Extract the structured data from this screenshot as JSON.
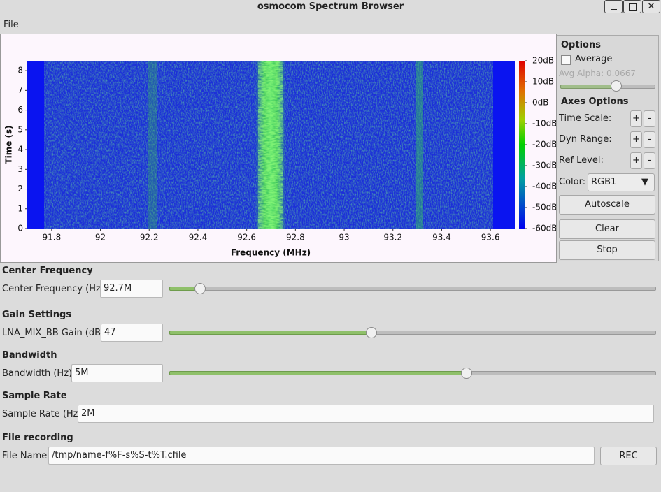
{
  "window": {
    "title": "osmocom Spectrum Browser"
  },
  "menu": [
    "File"
  ],
  "waterfall": {
    "type": "waterfall",
    "xlabel": "Frequency (MHz)",
    "ylabel": "Time (s)",
    "xlim": [
      91.7,
      93.7
    ],
    "ylim": [
      0,
      8.5
    ],
    "xticks": [
      91.8,
      92,
      92.2,
      92.4,
      92.6,
      92.8,
      93,
      93.2,
      93.4,
      93.6
    ],
    "yticks": [
      0,
      1,
      2,
      3,
      4,
      5,
      6,
      7,
      8
    ],
    "colorbar_lim": [
      -60,
      20
    ],
    "colorbar_ticks": [
      {
        "value": 20,
        "label": "20dB"
      },
      {
        "value": 10,
        "label": "10dB"
      },
      {
        "value": 0,
        "label": "0dB"
      },
      {
        "value": -10,
        "label": "-10dB"
      },
      {
        "value": -20,
        "label": "-20dB"
      },
      {
        "value": -30,
        "label": "-30dB"
      },
      {
        "value": -40,
        "label": "-40dB"
      },
      {
        "value": -50,
        "label": "-50dB"
      },
      {
        "value": -60,
        "label": "-60dB"
      }
    ]
  },
  "options": {
    "title": "Options",
    "average": "Average",
    "avg_alpha": "Avg Alpha: 0.0667",
    "axes_title": "Axes Options",
    "axes_rows": [
      {
        "label": "Time Scale:",
        "plus": "+",
        "minus": "-"
      },
      {
        "label": "Dyn Range:",
        "plus": "+",
        "minus": "-"
      },
      {
        "label": "Ref Level:",
        "plus": "+",
        "minus": "-"
      }
    ],
    "color_label": "Color:",
    "color_value": "RGB1",
    "autoscale": "Autoscale",
    "clear": "Clear",
    "stop": "Stop"
  },
  "sections": [
    {
      "title": "Center Frequency",
      "label": "Center Frequency (Hz):",
      "value": "92.7M"
    },
    {
      "title": "Gain Settings",
      "label": "LNA_MIX_BB Gain (dB):",
      "value": "47"
    },
    {
      "title": "Bandwidth",
      "label": "Bandwidth (Hz):",
      "value": "5M"
    },
    {
      "title": "Sample Rate",
      "label": "Sample Rate (Hz):",
      "value": "2M"
    },
    {
      "title": "File recording",
      "label": "File Name:",
      "value": "/tmp/name-f%F-s%S-t%T.cfile",
      "button": "REC"
    }
  ]
}
